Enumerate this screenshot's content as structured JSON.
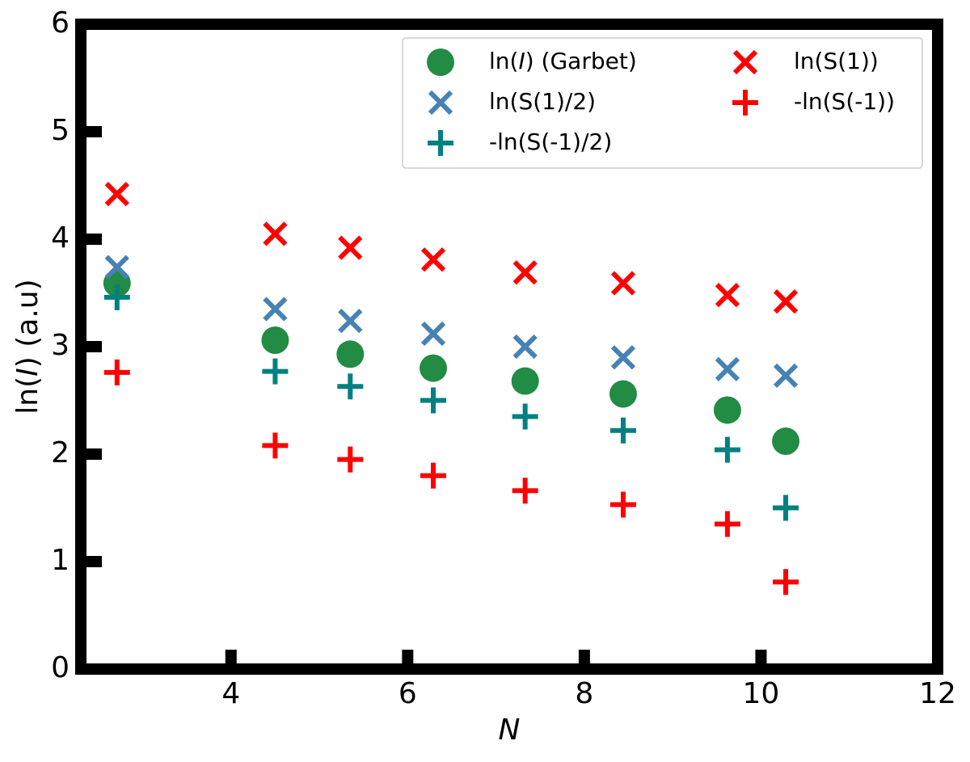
{
  "chart_data": {
    "type": "scatter",
    "xlabel": "N",
    "ylabel": "ln(I) (a.u)",
    "xlim": [
      2.3,
      12
    ],
    "ylim": [
      0,
      6
    ],
    "xticks": [
      4,
      6,
      8,
      10,
      12
    ],
    "yticks": [
      0,
      1,
      2,
      3,
      4,
      5,
      6
    ],
    "legend": "upper right",
    "legend_columns": 2,
    "x": [
      2.71,
      4.5,
      5.35,
      6.29,
      7.33,
      8.44,
      9.62,
      10.28
    ],
    "series": [
      {
        "name": "ln(I) (Garbet)",
        "color": "#228b44",
        "marker": "o",
        "values": [
          3.59,
          3.06,
          2.93,
          2.8,
          2.68,
          2.56,
          2.41,
          2.12
        ]
      },
      {
        "name": "ln(S(1)/2)",
        "color": "#4682b4",
        "marker": "x",
        "values": [
          3.74,
          3.35,
          3.24,
          3.12,
          3.0,
          2.9,
          2.79,
          2.73
        ]
      },
      {
        "name": "-ln(S(-1)/2)",
        "color": "#008080",
        "marker": "+",
        "values": [
          3.46,
          2.77,
          2.63,
          2.5,
          2.35,
          2.22,
          2.04,
          1.5
        ]
      },
      {
        "name": "ln(S(1))",
        "color": "#ff0000",
        "marker": "x",
        "values": [
          4.42,
          4.05,
          3.92,
          3.81,
          3.69,
          3.59,
          3.48,
          3.42
        ]
      },
      {
        "name": "-ln(S(-1))",
        "color": "#ff0000",
        "marker": "+",
        "values": [
          2.76,
          2.08,
          1.95,
          1.8,
          1.66,
          1.53,
          1.35,
          0.81
        ]
      }
    ]
  }
}
